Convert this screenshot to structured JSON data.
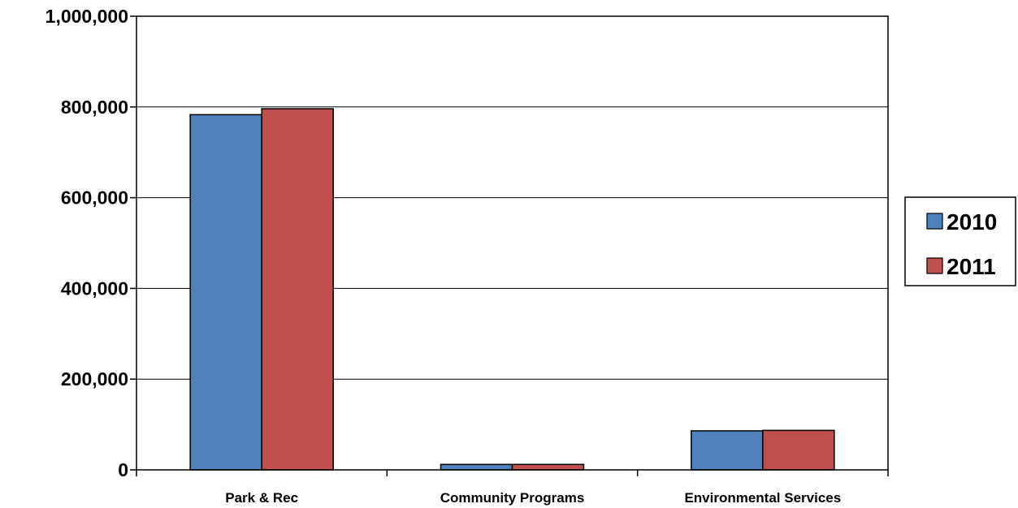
{
  "chart_data": {
    "type": "bar",
    "title": "",
    "xlabel": "",
    "ylabel": "",
    "categories": [
      "Park & Rec",
      "Community Programs",
      "Environmental Services"
    ],
    "series": [
      {
        "name": "2010",
        "values": [
          783000,
          12000,
          86000
        ],
        "color": "#4F81BD"
      },
      {
        "name": "2011",
        "values": [
          796000,
          12000,
          87000
        ],
        "color": "#C0504D"
      }
    ],
    "ylim": [
      0,
      1000000
    ],
    "yticks": [
      0,
      200000,
      400000,
      600000,
      800000,
      1000000
    ],
    "ytick_labels": [
      "0",
      "200,000",
      "400,000",
      "600,000",
      "800,000",
      "1,000,000"
    ],
    "grid": true,
    "legend_position": "right"
  }
}
